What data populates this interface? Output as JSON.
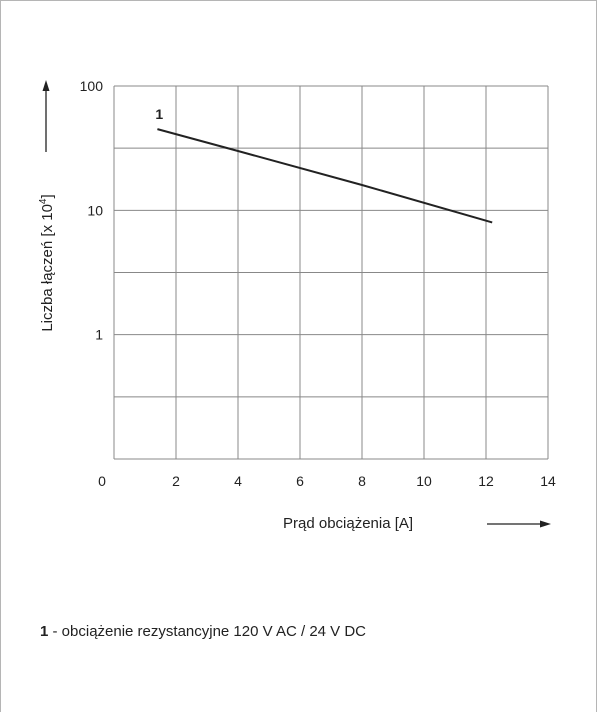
{
  "chart_data": {
    "type": "line",
    "xlabel": "Prąd obciążenia [A]",
    "ylabel_main": "Liczba łączeń [x 10",
    "ylabel_exponent": "4",
    "ylabel_close": "]",
    "xlim": [
      0,
      14
    ],
    "x_ticks": [
      "0",
      "2",
      "4",
      "6",
      "8",
      "10",
      "12",
      "14"
    ],
    "y_scale": "log",
    "ylim": [
      0.1,
      100
    ],
    "y_ticks": [
      {
        "value": 100,
        "label": "100"
      },
      {
        "value": 10,
        "label": "10"
      },
      {
        "value": 1,
        "label": "1"
      }
    ],
    "grid": true,
    "series": [
      {
        "name": "1",
        "x": [
          1.4,
          4,
          8,
          12.2
        ],
        "y": [
          45,
          30,
          16,
          8
        ]
      }
    ]
  },
  "legend_note": {
    "marker": "1",
    "text": " - obciążenie rezystancyjne 120 V AC / 24 V DC"
  },
  "colors": {
    "grid": "#888888",
    "line": "#222222"
  }
}
